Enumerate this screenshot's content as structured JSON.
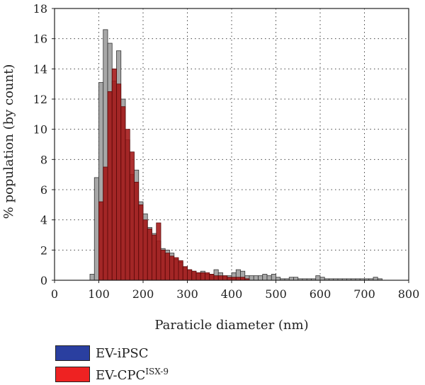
{
  "chart_data": {
    "type": "bar",
    "xlabel": "Paraticle diameter (nm)",
    "ylabel": "% population (by count)",
    "xlim": [
      0,
      800
    ],
    "ylim": [
      0,
      18
    ],
    "xticks": [
      "0",
      "100",
      "200",
      "300",
      "400",
      "500",
      "600",
      "700",
      "800"
    ],
    "yticks": [
      "0",
      "2",
      "4",
      "6",
      "8",
      "10",
      "12",
      "14",
      "16",
      "18"
    ],
    "grid": true,
    "legend_position": "bottom-left, below plot",
    "bin_width": 10,
    "series": [
      {
        "name": "EV-iPSC",
        "swatch_color": "#2a3fa0",
        "bar_fill": "#a7a7a7",
        "x": [
          85,
          95,
          105,
          115,
          125,
          135,
          145,
          155,
          165,
          175,
          185,
          195,
          205,
          215,
          225,
          235,
          245,
          255,
          265,
          275,
          285,
          295,
          305,
          315,
          325,
          335,
          345,
          355,
          365,
          375,
          385,
          395,
          405,
          415,
          425,
          435,
          445,
          455,
          465,
          475,
          485,
          495,
          505,
          515,
          525,
          535,
          545,
          555,
          565,
          575,
          585,
          595,
          605,
          615,
          625,
          635,
          645,
          655,
          665,
          675,
          685,
          695,
          705,
          715,
          725,
          735
        ],
        "values": [
          0.4,
          6.8,
          13.1,
          16.6,
          15.7,
          13.2,
          15.2,
          12.0,
          9.3,
          7.0,
          7.3,
          5.2,
          4.4,
          3.5,
          3.1,
          2.6,
          2.1,
          2.0,
          1.8,
          1.4,
          1.2,
          0.9,
          0.7,
          0.6,
          0.5,
          0.6,
          0.4,
          0.4,
          0.7,
          0.5,
          0.3,
          0.3,
          0.5,
          0.7,
          0.6,
          0.3,
          0.3,
          0.3,
          0.3,
          0.4,
          0.3,
          0.4,
          0.2,
          0.1,
          0.1,
          0.2,
          0.2,
          0.1,
          0.1,
          0.1,
          0.1,
          0.3,
          0.2,
          0.1,
          0.1,
          0.1,
          0.1,
          0.1,
          0.1,
          0.1,
          0.1,
          0.1,
          0.1,
          0.1,
          0.2,
          0.1
        ]
      },
      {
        "name": "EV-CPC",
        "name_superscript": "ISX-9",
        "swatch_color": "#ee2222",
        "bar_fill": "#a31515",
        "x": [
          105,
          115,
          125,
          135,
          145,
          155,
          165,
          175,
          185,
          195,
          205,
          215,
          225,
          235,
          245,
          255,
          265,
          275,
          285,
          295,
          305,
          315,
          325,
          335,
          345,
          355,
          365,
          375,
          385,
          395,
          405,
          415,
          425,
          435
        ],
        "values": [
          5.2,
          7.5,
          12.5,
          14.0,
          13.0,
          11.5,
          10.0,
          8.5,
          6.5,
          5.0,
          4.0,
          3.4,
          3.0,
          3.8,
          2.0,
          1.8,
          1.6,
          1.5,
          1.3,
          0.9,
          0.7,
          0.6,
          0.5,
          0.5,
          0.5,
          0.4,
          0.3,
          0.3,
          0.3,
          0.2,
          0.2,
          0.2,
          0.2,
          0.1
        ]
      }
    ]
  }
}
